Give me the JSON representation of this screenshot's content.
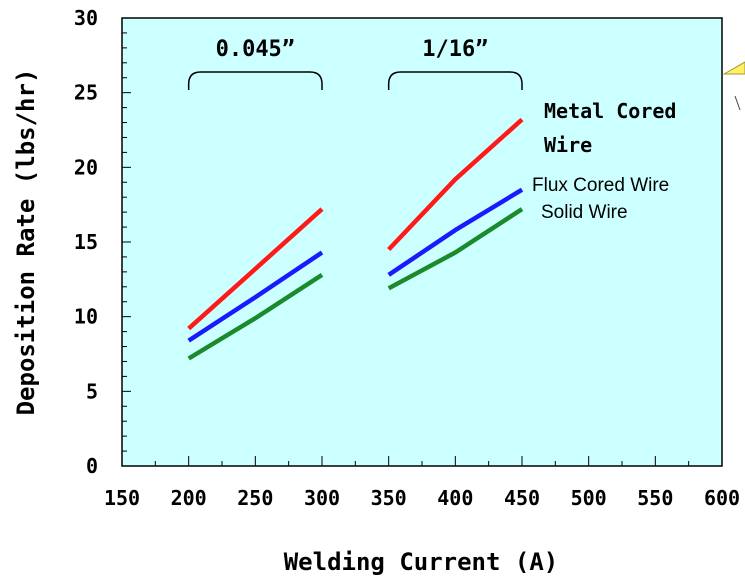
{
  "chart_data": {
    "type": "line",
    "title": "",
    "xlabel": "Welding Current (A)",
    "ylabel": "Deposition Rate (lbs/hr)",
    "xlim": [
      150,
      600
    ],
    "ylim": [
      0,
      30
    ],
    "x_ticks": [
      "150",
      "200",
      "250",
      "300",
      "350",
      "400",
      "450",
      "500",
      "550",
      "600"
    ],
    "y_ticks": [
      "0",
      "5",
      "10",
      "15",
      "20",
      "25",
      "30"
    ],
    "background_color": "#ccffff",
    "grid": false,
    "groups": [
      {
        "label": "0.045”",
        "x_range": [
          200,
          300
        ]
      },
      {
        "label": "1/16”",
        "x_range": [
          350,
          450
        ]
      }
    ],
    "series": [
      {
        "name_lines": [
          "Metal Cored",
          "Wire"
        ],
        "color": "#ff1a1a",
        "segments": [
          [
            [
              200,
              9.2
            ],
            [
              250,
              13.2
            ],
            [
              300,
              17.2
            ]
          ],
          [
            [
              350,
              14.5
            ],
            [
              400,
              19.2
            ],
            [
              450,
              23.2
            ]
          ]
        ]
      },
      {
        "name_lines": [
          "Flux Cored Wire"
        ],
        "color": "#1a1aff",
        "segments": [
          [
            [
              200,
              8.4
            ],
            [
              250,
              11.3
            ],
            [
              300,
              14.3
            ]
          ],
          [
            [
              350,
              12.8
            ],
            [
              400,
              15.8
            ],
            [
              450,
              18.5
            ]
          ]
        ]
      },
      {
        "name_lines": [
          "Solid Wire"
        ],
        "color": "#1a8a2a",
        "segments": [
          [
            [
              200,
              7.2
            ],
            [
              250,
              9.9
            ],
            [
              300,
              12.8
            ]
          ],
          [
            [
              350,
              11.9
            ],
            [
              400,
              14.3
            ],
            [
              450,
              17.2
            ]
          ]
        ]
      }
    ]
  }
}
